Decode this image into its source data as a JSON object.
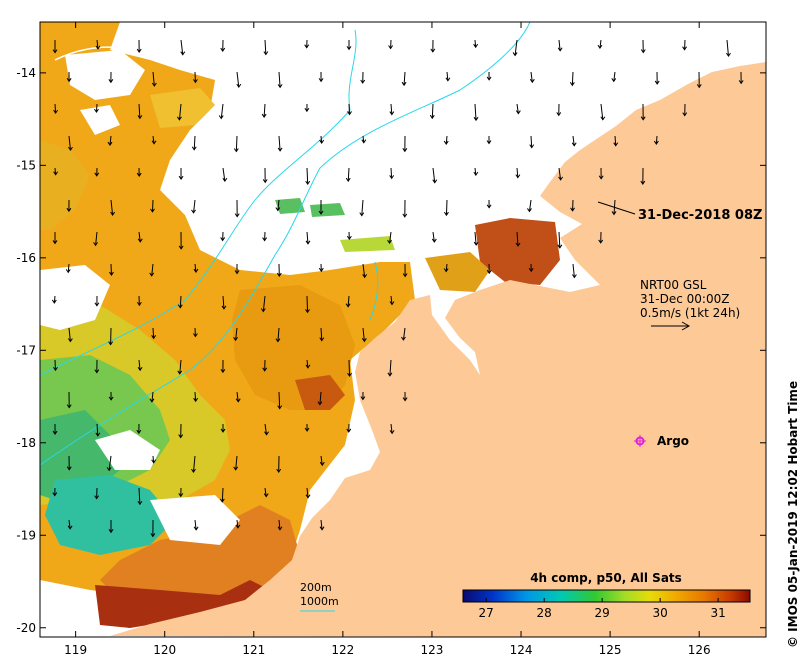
{
  "map": {
    "x_axis": {
      "ticks": [
        119,
        120,
        121,
        122,
        123,
        124,
        125,
        126
      ],
      "range": [
        118.6,
        126.75
      ]
    },
    "y_axis": {
      "ticks": [
        -14,
        -15,
        -16,
        -17,
        -18,
        -19,
        -20
      ],
      "range": [
        -20.1,
        -13.45
      ]
    },
    "land_color": "#fdc997",
    "ocean_color": "#ffffff",
    "isobath_color": "#28d8e8"
  },
  "annotations": {
    "snapshot_label": "31-Dec-2018 08Z",
    "current_product": "NRT00 GSL",
    "current_time": "31-Dec 00:00Z",
    "current_scale": "0.5m/s (1kt 24h)",
    "argo_label": "Argo",
    "isobath_200": "200m",
    "isobath_1000": "1000m"
  },
  "colorbar": {
    "title": "4h comp, p50, All Sats",
    "ticks": [
      27,
      28,
      29,
      30,
      31
    ],
    "range": [
      26.6,
      31.55
    ],
    "colors": [
      "#0a0a6e",
      "#0032c8",
      "#0096e6",
      "#00c8b4",
      "#32c832",
      "#a0dc28",
      "#e6dc0a",
      "#f0aa00",
      "#e67800",
      "#c83c00",
      "#8c0a00"
    ]
  },
  "credit": "IMOS 05-Jan-2019 12:02 Hobart Time",
  "credit_symbol": "©"
}
